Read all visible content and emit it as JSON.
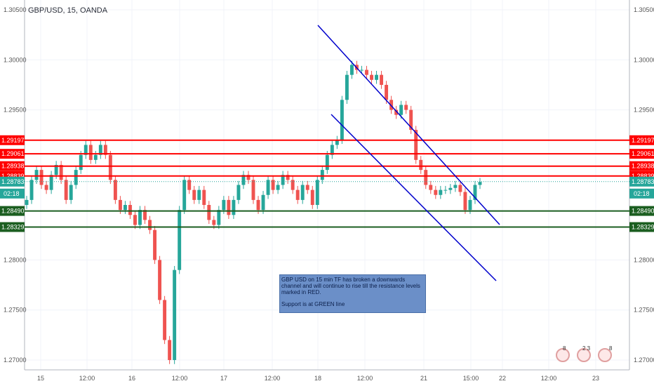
{
  "header": {
    "symbol": "GBP/USD, 15, OANDA"
  },
  "note": {
    "line1": "GBP USD on 15 min TF has broken a downwards channel and will continue to rise till the resistance levels marked in RED.",
    "line2": "Support is at GREEN line"
  },
  "current_time_tag": "02:18",
  "events": [
    {
      "icon": "uk-flag-icon",
      "count": "8"
    },
    {
      "icon": "us-flag-icon",
      "count": "2 3"
    },
    {
      "icon": "us-flag-icon",
      "count": "8"
    }
  ],
  "colors": {
    "up": "#26a69a",
    "down": "#ef5350",
    "resistance": "#ff0000",
    "support": "#1b5e20",
    "channel": "#0000cc",
    "last": "#26a69a"
  },
  "chart_data": {
    "type": "candlestick",
    "title": "GBP/USD, 15, OANDA",
    "ylim": [
      1.27,
      1.305
    ],
    "y_ticks": [
      "1.30500",
      "1.30000",
      "1.29500",
      "1.28000",
      "1.27500",
      "1.27000"
    ],
    "x_ticks": [
      "15",
      "12:00",
      "16",
      "12:00",
      "17",
      "12:00",
      "18",
      "12:00",
      "21",
      "15:00",
      "22",
      "12:00",
      "23"
    ],
    "resistance_levels": [
      "1.29197",
      "1.29061",
      "1.28938",
      "1.28839"
    ],
    "support_levels": [
      "1.28490",
      "1.28329"
    ],
    "last_price": "1.28783",
    "series": [
      {
        "values": [
          1.286,
          1.288,
          1.289,
          1.2875,
          1.287,
          1.2885,
          1.2895,
          1.288,
          1.286,
          1.2875,
          1.289,
          1.2905,
          1.2915,
          1.29,
          1.2905,
          1.2915,
          1.2905,
          1.288,
          1.286,
          1.285,
          1.2855,
          1.2845,
          1.2835,
          1.285,
          1.284,
          1.283,
          1.28,
          1.276,
          1.272,
          1.27,
          1.279,
          1.285,
          1.288,
          1.287,
          1.286,
          1.287,
          1.2855,
          1.284,
          1.2835,
          1.285,
          1.286,
          1.2845,
          1.286,
          1.2875,
          1.2885,
          1.288,
          1.286,
          1.285,
          1.2865,
          1.288,
          1.287,
          1.2875,
          1.2885,
          1.288,
          1.287,
          1.286,
          1.2875,
          1.287,
          1.2855,
          1.288,
          1.289,
          1.2905,
          1.2915,
          1.292,
          1.296,
          1.2985,
          1.2995,
          1.299,
          1.299,
          1.2985,
          1.298,
          1.2985,
          1.2975,
          1.296,
          1.295,
          1.2945,
          1.2955,
          1.295,
          1.293,
          1.29,
          1.289,
          1.2875,
          1.287,
          1.2865,
          1.287,
          1.287,
          1.2872,
          1.2875,
          1.2868,
          1.285,
          1.286,
          1.2875,
          1.2878
        ]
      }
    ]
  }
}
